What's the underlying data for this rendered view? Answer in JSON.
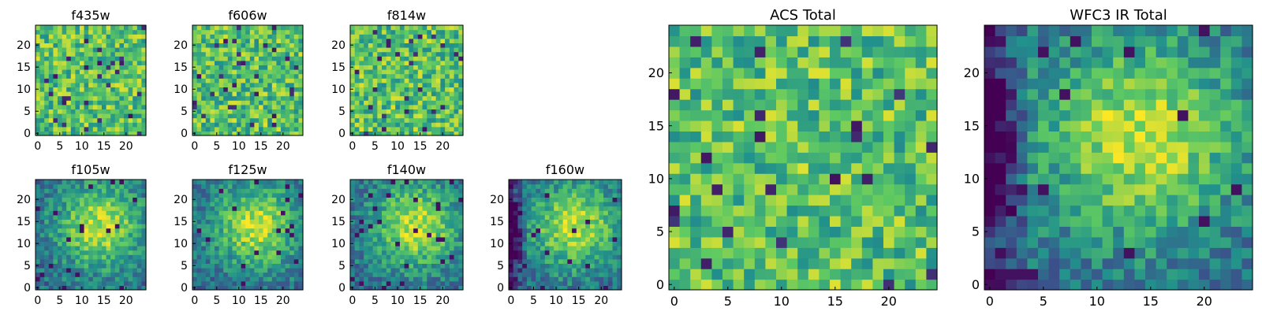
{
  "colormap": [
    "#440154",
    "#3b528b",
    "#21918c",
    "#5ec962",
    "#fde725"
  ],
  "chart_data": [
    {
      "type": "heatmap",
      "title": "f435w",
      "grid_size": 25,
      "xlim": [
        0,
        24
      ],
      "ylim": [
        0,
        24
      ],
      "x_ticks": [
        "0",
        "5",
        "10",
        "15",
        "20"
      ],
      "y_ticks": [
        "0",
        "5",
        "10",
        "15",
        "20"
      ],
      "pattern": "noise",
      "seed": 11,
      "value_range": [
        0,
        1
      ]
    },
    {
      "type": "heatmap",
      "title": "f606w",
      "grid_size": 25,
      "xlim": [
        0,
        24
      ],
      "ylim": [
        0,
        24
      ],
      "x_ticks": [
        "0",
        "5",
        "10",
        "15",
        "20"
      ],
      "y_ticks": [
        "0",
        "5",
        "10",
        "15",
        "20"
      ],
      "pattern": "noise",
      "seed": 23,
      "value_range": [
        0,
        1
      ]
    },
    {
      "type": "heatmap",
      "title": "f814w",
      "grid_size": 25,
      "xlim": [
        0,
        24
      ],
      "ylim": [
        0,
        24
      ],
      "x_ticks": [
        "0",
        "5",
        "10",
        "15",
        "20"
      ],
      "y_ticks": [
        "0",
        "5",
        "10",
        "15",
        "20"
      ],
      "pattern": "noise",
      "seed": 37,
      "value_range": [
        0,
        1
      ]
    },
    {
      "type": "heatmap",
      "title": "f105w",
      "grid_size": 25,
      "xlim": [
        0,
        24
      ],
      "ylim": [
        0,
        24
      ],
      "x_ticks": [
        "0",
        "5",
        "10",
        "15",
        "20"
      ],
      "y_ticks": [
        "0",
        "5",
        "10",
        "15",
        "20"
      ],
      "pattern": "blob",
      "seed": 41,
      "value_range": [
        0,
        1
      ]
    },
    {
      "type": "heatmap",
      "title": "f125w",
      "grid_size": 25,
      "xlim": [
        0,
        24
      ],
      "ylim": [
        0,
        24
      ],
      "x_ticks": [
        "0",
        "5",
        "10",
        "15",
        "20"
      ],
      "y_ticks": [
        "0",
        "5",
        "10",
        "15",
        "20"
      ],
      "pattern": "blob",
      "seed": 53,
      "value_range": [
        0,
        1
      ]
    },
    {
      "type": "heatmap",
      "title": "f140w",
      "grid_size": 25,
      "xlim": [
        0,
        24
      ],
      "ylim": [
        0,
        24
      ],
      "x_ticks": [
        "0",
        "5",
        "10",
        "15",
        "20"
      ],
      "y_ticks": [
        "0",
        "5",
        "10",
        "15",
        "20"
      ],
      "pattern": "blob",
      "seed": 67,
      "value_range": [
        0,
        1
      ]
    },
    {
      "type": "heatmap",
      "title": "f160w",
      "grid_size": 25,
      "xlim": [
        0,
        24
      ],
      "ylim": [
        0,
        24
      ],
      "x_ticks": [
        "0",
        "5",
        "10",
        "15",
        "20"
      ],
      "y_ticks": [
        "0",
        "5",
        "10",
        "15",
        "20"
      ],
      "pattern": "blob-dark-left",
      "seed": 79,
      "value_range": [
        0,
        1
      ]
    },
    {
      "type": "heatmap",
      "title": "ACS Total",
      "grid_size": 25,
      "xlim": [
        0,
        24
      ],
      "ylim": [
        0,
        24
      ],
      "x_ticks": [
        "0",
        "5",
        "10",
        "15",
        "20"
      ],
      "y_ticks": [
        "0",
        "5",
        "10",
        "15",
        "20"
      ],
      "pattern": "noise",
      "seed": 89,
      "value_range": [
        0,
        1
      ]
    },
    {
      "type": "heatmap",
      "title": "WFC3 IR Total",
      "grid_size": 25,
      "xlim": [
        0,
        24
      ],
      "ylim": [
        0,
        24
      ],
      "x_ticks": [
        "0",
        "5",
        "10",
        "15",
        "20"
      ],
      "y_ticks": [
        "0",
        "5",
        "10",
        "15",
        "20"
      ],
      "pattern": "blob-dark-left",
      "seed": 97,
      "value_range": [
        0,
        1
      ]
    }
  ]
}
